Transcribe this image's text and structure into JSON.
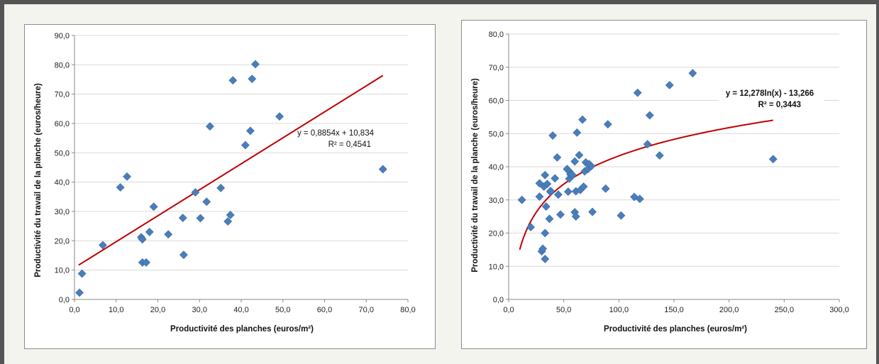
{
  "chart_data": [
    {
      "type": "scatter",
      "xlabel": "Productivité des planches (euros/m²)",
      "ylabel": "Productivité du travail de la planche (euros/heure)",
      "xlim": [
        0,
        80
      ],
      "ylim": [
        0,
        90
      ],
      "x_ticks": [
        "0,0",
        "10,0",
        "20,0",
        "30,0",
        "40,0",
        "50,0",
        "60,0",
        "70,0",
        "80,0"
      ],
      "y_ticks": [
        "0,0",
        "10,0",
        "20,0",
        "30,0",
        "40,0",
        "50,0",
        "60,0",
        "70,0",
        "80,0",
        "90,0"
      ],
      "grid": "horizontal",
      "marker_color": "#4a7ebb",
      "trendline": {
        "kind": "linear",
        "slope": 0.8854,
        "intercept": 10.834,
        "x_range": [
          1,
          74
        ],
        "color": "#c00000"
      },
      "equation": [
        "y = 0,8854x + 10,834",
        "R² = 0,4541"
      ],
      "points": [
        [
          1.2,
          2.3
        ],
        [
          1.8,
          8.8
        ],
        [
          6.8,
          18.5
        ],
        [
          11.0,
          38.2
        ],
        [
          12.6,
          41.9
        ],
        [
          16.0,
          21.2
        ],
        [
          16.3,
          20.5
        ],
        [
          16.3,
          12.6
        ],
        [
          17.2,
          12.6
        ],
        [
          18.0,
          23.0
        ],
        [
          19.0,
          31.6
        ],
        [
          22.5,
          22.2
        ],
        [
          26.0,
          27.8
        ],
        [
          26.2,
          15.2
        ],
        [
          29.0,
          36.5
        ],
        [
          30.2,
          27.7
        ],
        [
          31.7,
          33.3
        ],
        [
          32.5,
          59.0
        ],
        [
          35.1,
          38.0
        ],
        [
          36.8,
          26.6
        ],
        [
          37.4,
          28.8
        ],
        [
          38.0,
          74.7
        ],
        [
          41.0,
          52.6
        ],
        [
          42.2,
          57.5
        ],
        [
          42.6,
          75.2
        ],
        [
          43.4,
          80.2
        ],
        [
          49.2,
          62.4
        ],
        [
          74.0,
          44.4
        ]
      ]
    },
    {
      "type": "scatter",
      "xlabel": "Productivité des planches (euros/m²)",
      "ylabel": "Productivité du travail de la planche (euros/heure)",
      "xlim": [
        0,
        300
      ],
      "ylim": [
        0,
        80
      ],
      "x_ticks": [
        "0,0",
        "50,0",
        "100,0",
        "150,0",
        "200,0",
        "250,0",
        "300,0"
      ],
      "y_ticks": [
        "0,0",
        "10,0",
        "20,0",
        "30,0",
        "40,0",
        "50,0",
        "60,0",
        "70,0",
        "80,0"
      ],
      "grid": "horizontal",
      "marker_color": "#4a7ebb",
      "trendline": {
        "kind": "logarithmic",
        "a": 12.278,
        "b": -13.266,
        "x_range": [
          10,
          240
        ],
        "color": "#c00000"
      },
      "equation": [
        "y = 12,278ln(x) - 13,266",
        "R² = 0,3443"
      ],
      "points": [
        [
          12,
          30.0
        ],
        [
          20,
          21.8
        ],
        [
          28,
          31.0
        ],
        [
          28,
          35.0
        ],
        [
          30,
          14.5
        ],
        [
          31,
          15.3
        ],
        [
          32,
          34.0
        ],
        [
          33,
          37.5
        ],
        [
          33,
          20.0
        ],
        [
          33,
          12.2
        ],
        [
          34,
          28.0
        ],
        [
          35,
          34.8
        ],
        [
          37,
          24.3
        ],
        [
          38,
          32.4
        ],
        [
          38,
          32.7
        ],
        [
          40,
          49.4
        ],
        [
          42,
          36.5
        ],
        [
          44,
          42.8
        ],
        [
          45,
          31.6
        ],
        [
          47,
          25.6
        ],
        [
          53,
          39.3
        ],
        [
          54,
          32.5
        ],
        [
          55,
          36.4
        ],
        [
          55,
          38.6
        ],
        [
          56,
          37.7
        ],
        [
          58,
          37.5
        ],
        [
          60,
          26.3
        ],
        [
          60,
          41.6
        ],
        [
          61,
          25.0
        ],
        [
          61,
          32.6
        ],
        [
          62,
          50.3
        ],
        [
          64,
          43.5
        ],
        [
          65,
          33.0
        ],
        [
          67,
          54.2
        ],
        [
          68,
          34.0
        ],
        [
          69,
          38.6
        ],
        [
          70,
          41.3
        ],
        [
          72,
          39.3
        ],
        [
          73,
          40.8
        ],
        [
          75,
          40.2
        ],
        [
          76,
          26.4
        ],
        [
          88,
          33.4
        ],
        [
          90,
          52.8
        ],
        [
          102,
          25.3
        ],
        [
          114,
          30.9
        ],
        [
          117,
          62.3
        ],
        [
          119,
          30.3
        ],
        [
          126,
          46.8
        ],
        [
          128,
          55.5
        ],
        [
          137,
          43.4
        ],
        [
          146,
          64.6
        ],
        [
          167,
          68.2
        ],
        [
          240,
          42.3
        ]
      ]
    }
  ]
}
